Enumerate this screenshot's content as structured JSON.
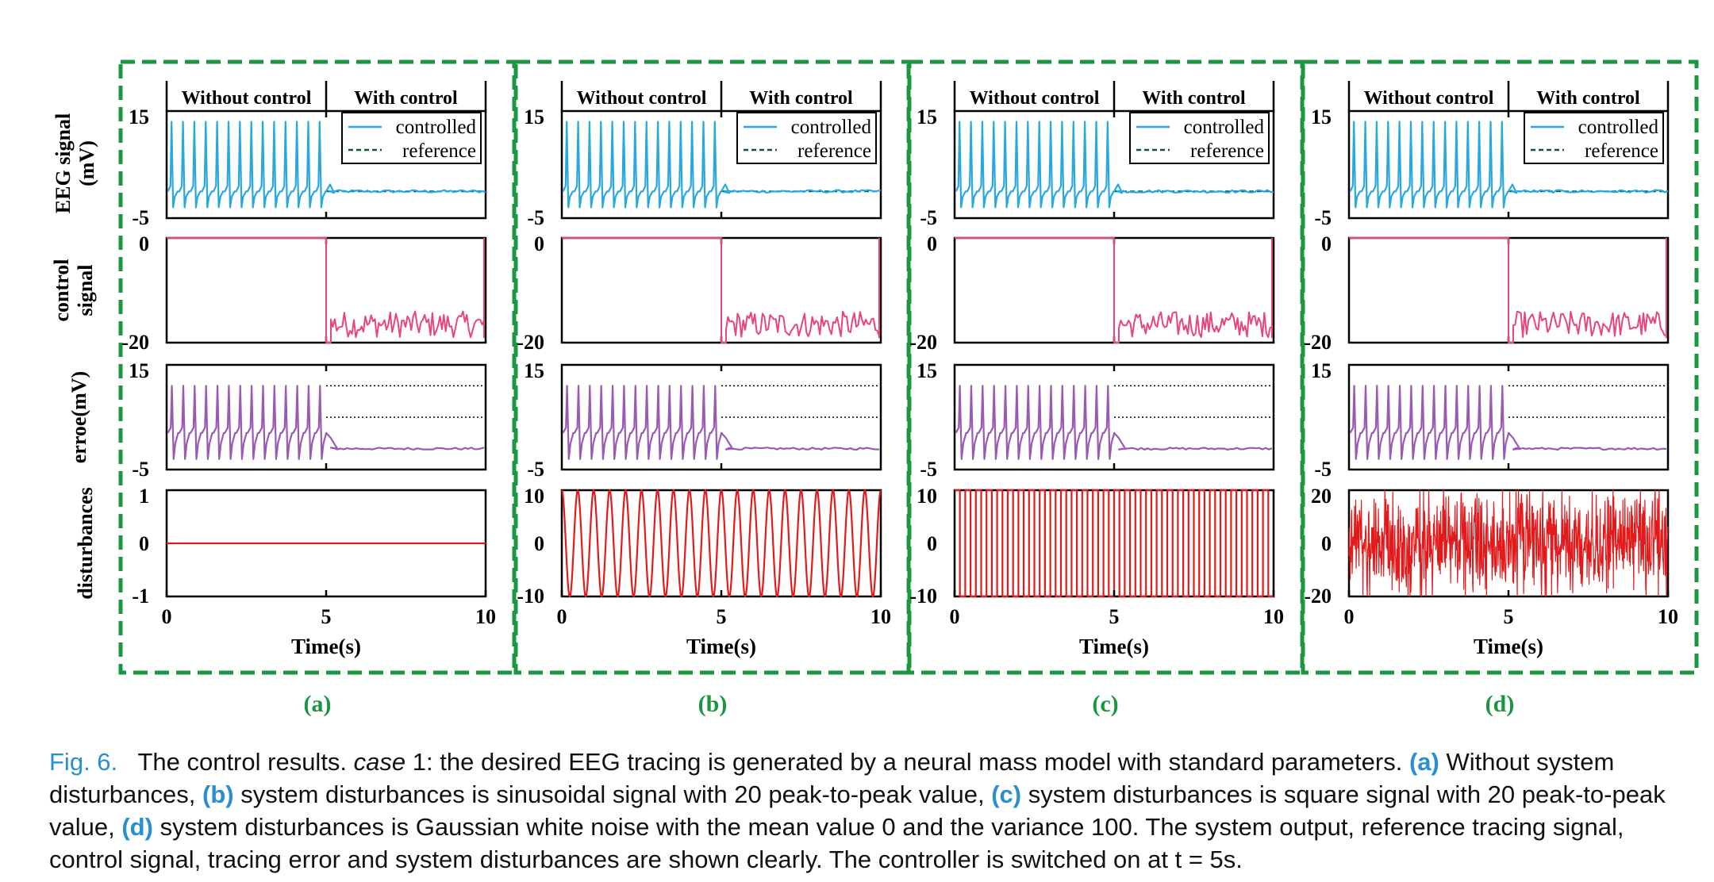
{
  "figure": {
    "row_labels": {
      "eeg": [
        "EEG signal",
        "(mV)"
      ],
      "control": [
        "control",
        "signal"
      ],
      "error": "erroe(mV)",
      "disturbance": "disturbances"
    },
    "segment_labels": [
      "Without control",
      "With control"
    ],
    "legend": [
      "controlled",
      "reference"
    ],
    "x_title": "Time(s)",
    "colors": {
      "frame": "#1a9641",
      "eeg": "#29a8e0",
      "control": "#e8457c",
      "error": "#9b59b6",
      "disturbance": "#e31a1c",
      "axis": "#000000"
    }
  },
  "chart_data": [
    {
      "panel": "(a)",
      "type": "line",
      "xlabel": "Time(s)",
      "xlim": [
        0,
        10
      ],
      "xticks": [
        "0",
        "5",
        "10"
      ],
      "switch_time": 5,
      "eeg": {
        "ylim": [
          -5,
          15
        ],
        "yticks": [
          "15",
          "-5"
        ],
        "spikes_before_switch": 14,
        "spike_peak": 13,
        "spike_trough": -3,
        "baseline_after_switch": 0
      },
      "control": {
        "ylim": [
          -20,
          0
        ],
        "yticks": [
          "0",
          "-20"
        ],
        "value_before_switch": 0,
        "range_after_switch": [
          -19,
          -14
        ]
      },
      "error": {
        "ylim": [
          -5,
          15
        ],
        "yticks": [
          "15",
          "-5"
        ],
        "dotted_levels": [
          11,
          5
        ],
        "range_before_switch": [
          -3,
          11
        ],
        "value_after_switch": -1
      },
      "disturbance": {
        "kind": "none",
        "ylim": [
          -1,
          1
        ],
        "yticks": [
          "1",
          "0",
          "-1"
        ],
        "value": 0
      }
    },
    {
      "panel": "(b)",
      "type": "line",
      "xlabel": "Time(s)",
      "xlim": [
        0,
        10
      ],
      "xticks": [
        "0",
        "5",
        "10"
      ],
      "switch_time": 5,
      "eeg": {
        "ylim": [
          -5,
          15
        ],
        "yticks": [
          "15",
          "-5"
        ],
        "spikes_before_switch": 14,
        "spike_peak": 13,
        "spike_trough": -3,
        "baseline_after_switch": 0
      },
      "control": {
        "ylim": [
          -20,
          0
        ],
        "yticks": [
          "0",
          "-20"
        ],
        "value_before_switch": 0,
        "range_after_switch": [
          -19,
          -14
        ]
      },
      "error": {
        "ylim": [
          -5,
          15
        ],
        "yticks": [
          "15",
          "-5"
        ],
        "dotted_levels": [
          11,
          5
        ],
        "range_before_switch": [
          -3,
          11
        ],
        "value_after_switch": -1
      },
      "disturbance": {
        "kind": "sinusoid",
        "ylim": [
          -10,
          10
        ],
        "yticks": [
          "10",
          "0",
          "-10"
        ],
        "amplitude": 10,
        "cycles": 20
      }
    },
    {
      "panel": "(c)",
      "type": "line",
      "xlabel": "Time(s)",
      "xlim": [
        0,
        10
      ],
      "xticks": [
        "0",
        "5",
        "10"
      ],
      "switch_time": 5,
      "eeg": {
        "ylim": [
          -5,
          15
        ],
        "yticks": [
          "15",
          "-5"
        ],
        "spikes_before_switch": 14,
        "spike_peak": 13,
        "spike_trough": -3,
        "baseline_after_switch": 0
      },
      "control": {
        "ylim": [
          -20,
          0
        ],
        "yticks": [
          "0",
          "-20"
        ],
        "value_before_switch": 0,
        "range_after_switch": [
          -19,
          -14
        ]
      },
      "error": {
        "ylim": [
          -5,
          15
        ],
        "yticks": [
          "15",
          "-5"
        ],
        "dotted_levels": [
          11,
          5
        ],
        "range_before_switch": [
          -3,
          11
        ],
        "value_after_switch": -1
      },
      "disturbance": {
        "kind": "square",
        "ylim": [
          -10,
          10
        ],
        "yticks": [
          "10",
          "0",
          "-10"
        ],
        "amplitude": 10,
        "cycles": 30
      }
    },
    {
      "panel": "(d)",
      "type": "line",
      "xlabel": "Time(s)",
      "xlim": [
        0,
        10
      ],
      "xticks": [
        "0",
        "5",
        "10"
      ],
      "switch_time": 5,
      "eeg": {
        "ylim": [
          -5,
          15
        ],
        "yticks": [
          "15",
          "-5"
        ],
        "spikes_before_switch": 14,
        "spike_peak": 13,
        "spike_trough": -3,
        "baseline_after_switch": 0
      },
      "control": {
        "ylim": [
          -20,
          0
        ],
        "yticks": [
          "0",
          "-20"
        ],
        "value_before_switch": 0,
        "range_after_switch": [
          -19,
          -14
        ]
      },
      "error": {
        "ylim": [
          -5,
          15
        ],
        "yticks": [
          "15",
          "-5"
        ],
        "dotted_levels": [
          11,
          5
        ],
        "range_before_switch": [
          -3,
          11
        ],
        "value_after_switch": -1
      },
      "disturbance": {
        "kind": "gaussian",
        "ylim": [
          -20,
          20
        ],
        "yticks": [
          "20",
          "0",
          "-20"
        ],
        "mean": 0,
        "variance": 100
      }
    }
  ],
  "caption": {
    "fig_label": "Fig. 6.",
    "text_1": "The control results.",
    "case_word": "case",
    "text_2": "1: the desired EEG tracing is generated by a neural mass model with standard parameters.",
    "label_a": "(a)",
    "text_a": "Without system disturbances,",
    "label_b": "(b)",
    "text_b": "system disturbances is sinusoidal signal with 20 peak-to-peak value,",
    "label_c": "(c)",
    "text_c": "system disturbances is square signal with 20 peak-to-peak value,",
    "label_d": "(d)",
    "text_d": "system disturbances is Gaussian white noise with the mean value 0 and the variance 100. The system output, reference tracing signal, control signal, tracing error and system disturbances are shown clearly. The controller is switched on at t = 5s."
  }
}
